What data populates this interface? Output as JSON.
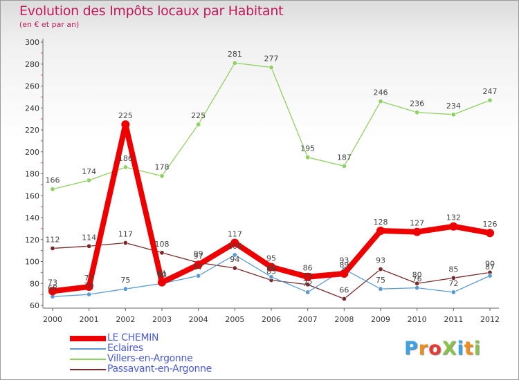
{
  "brand": {
    "text": "ProXiti",
    "colors": [
      "#3aa3e3",
      "#f28c1a",
      "#e53935",
      "#8bc34a",
      "#3aa3e3",
      "#f28c1a",
      "#8bc34a"
    ]
  },
  "chart_data": {
    "type": "line",
    "title": "Evolution des Impôts locaux par Habitant",
    "subtitle": "(en € et par an)",
    "xlabel": "",
    "ylabel": "",
    "categories": [
      "2000",
      "2001",
      "2002",
      "2003",
      "2004",
      "2005",
      "2006",
      "2007",
      "2008",
      "2009",
      "2010",
      "2011",
      "2012"
    ],
    "ylim": [
      60,
      300
    ],
    "yticks": [
      60,
      80,
      100,
      120,
      140,
      160,
      180,
      200,
      220,
      240,
      260,
      280,
      300
    ],
    "grid": false,
    "legend_position": "bottom-left",
    "series": [
      {
        "name": "LE CHEMIN",
        "color": "#ee0000",
        "values": [
          73,
          77,
          225,
          81,
          97,
          117,
          95,
          86,
          89,
          128,
          127,
          132,
          126
        ]
      },
      {
        "name": "Eclaires",
        "color": "#5b9bd5",
        "values": [
          68,
          70,
          75,
          80,
          87,
          106,
          86,
          72,
          93,
          75,
          76,
          72,
          87
        ]
      },
      {
        "name": "Villers-en-Argonne",
        "color": "#8fd160",
        "values": [
          166,
          174,
          186,
          178,
          225,
          281,
          277,
          195,
          187,
          246,
          236,
          234,
          247
        ]
      },
      {
        "name": "Passavant-en-Argonne",
        "color": "#7a2a2a",
        "values": [
          112,
          114,
          117,
          108,
          99,
          94,
          83,
          79,
          66,
          93,
          80,
          85,
          90
        ]
      }
    ]
  }
}
